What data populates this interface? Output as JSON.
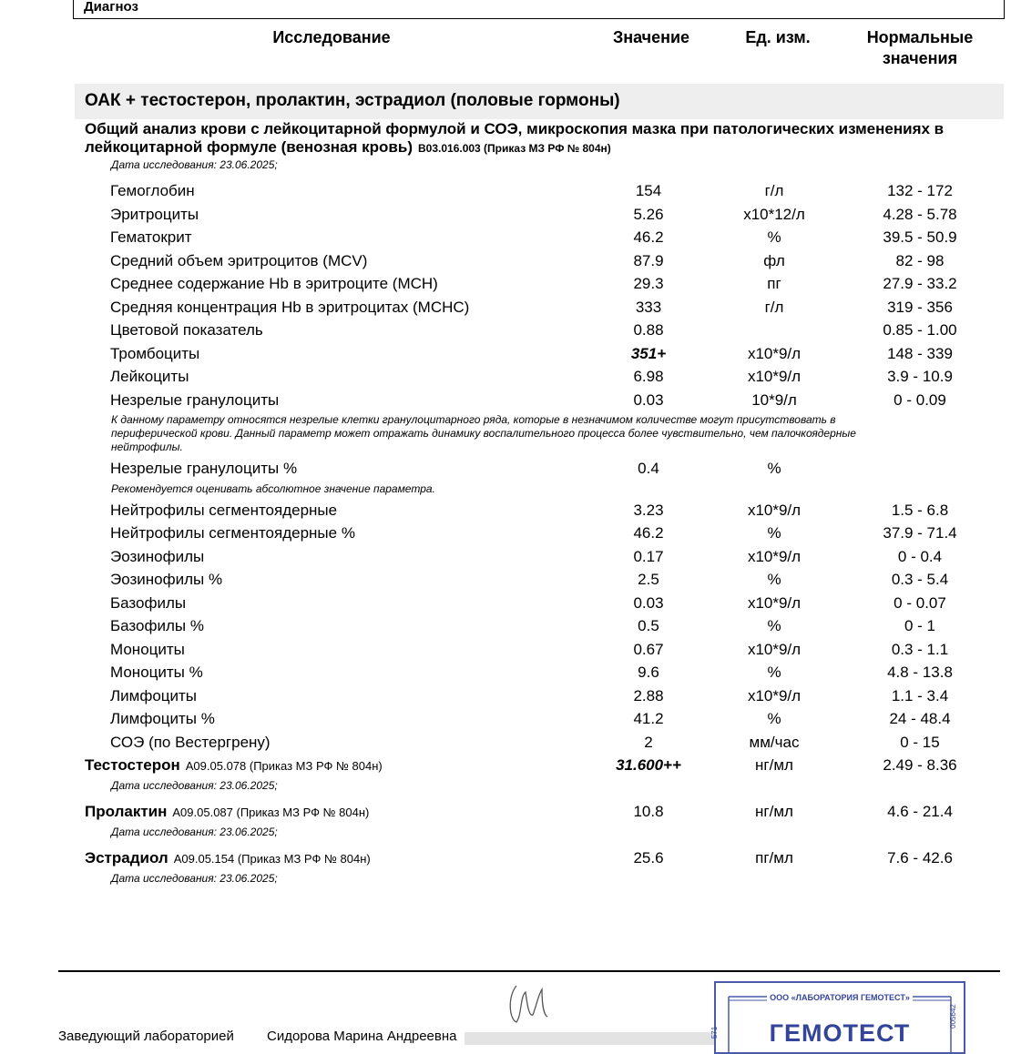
{
  "header": {
    "diagnosis": "Диагноз"
  },
  "columns": [
    "Исследование",
    "Значение",
    "Ед. изм.",
    "Нормальные значения"
  ],
  "panel": "ОАК + тестостерон, пролактин, эстрадиол (половые гормоны)",
  "cbc": {
    "title": "Общий анализ крови с лейкоцитарной формулой и СОЭ, микроскопия мазка при патологических изменениях в лейкоцитарной формуле (венозная кровь)",
    "code": "B03.016.003 (Приказ МЗ РФ № 804н)",
    "date": "Дата исследования: 23.06.2025;",
    "rows": [
      {
        "name": "Гемоглобин",
        "value": "154",
        "unit": "г/л",
        "range": "132 - 172"
      },
      {
        "name": "Эритроциты",
        "value": "5.26",
        "unit": "x10*12/л",
        "range": "4.28 - 5.78"
      },
      {
        "name": "Гематокрит",
        "value": "46.2",
        "unit": "%",
        "range": "39.5 - 50.9"
      },
      {
        "name": "Средний объем эритроцитов (MCV)",
        "value": "87.9",
        "unit": "фл",
        "range": "82 - 98"
      },
      {
        "name": "Среднее содержание Hb в эритроците (MCH)",
        "value": "29.3",
        "unit": "пг",
        "range": "27.9 - 33.2"
      },
      {
        "name": "Средняя концентрация Hb в эритроцитах (MCHC)",
        "value": "333",
        "unit": "г/л",
        "range": "319 - 356"
      },
      {
        "name": "Цветовой показатель",
        "value": "0.88",
        "range": "0.85 - 1.00"
      },
      {
        "name": "Тромбоциты",
        "value": "351+",
        "unit": "x10*9/л",
        "range": "148 - 339"
      },
      {
        "name": "Лейкоциты",
        "value": "6.98",
        "unit": "x10*9/л",
        "range": "3.9 - 10.9"
      },
      {
        "name": "Незрелые гранулоциты",
        "value": "0.03",
        "unit": "10*9/л",
        "range": "0 - 0.09",
        "note": "К данному параметру относятся незрелые клетки гранулоцитарного ряда, которые  в незначимом количестве могут присутствовать в периферической крови. Данный параметр может отражать динамику воспалительного процесса более чувствительно, чем палочкоядерные нейтрофилы."
      },
      {
        "name": "Незрелые гранулоциты %",
        "value": "0.4",
        "unit": "%",
        "note": "Рекомендуется оценивать абсолютное значение параметра."
      },
      {
        "name": "Нейтрофилы сегментоядерные",
        "value": "3.23",
        "unit": "x10*9/л",
        "range": "1.5 - 6.8"
      },
      {
        "name": "Нейтрофилы сегментоядерные %",
        "value": "46.2",
        "unit": "%",
        "range": "37.9 - 71.4"
      },
      {
        "name": "Эозинофилы",
        "value": "0.17",
        "unit": "x10*9/л",
        "range": "0 - 0.4"
      },
      {
        "name": "Эозинофилы %",
        "value": "2.5",
        "unit": "%",
        "range": "0.3 - 5.4"
      },
      {
        "name": "Базофилы",
        "value": "0.03",
        "unit": "x10*9/л",
        "range": "0 - 0.07"
      },
      {
        "name": "Базофилы %",
        "value": "0.5",
        "unit": "%",
        "range": "0 - 1"
      },
      {
        "name": "Моноциты",
        "value": "0.67",
        "unit": "x10*9/л",
        "range": "0.3 - 1.1"
      },
      {
        "name": "Моноциты %",
        "value": "9.6",
        "unit": "%",
        "range": "4.8 - 13.8"
      },
      {
        "name": "Лимфоциты",
        "value": "2.88",
        "unit": "x10*9/л",
        "range": "1.1 - 3.4"
      },
      {
        "name": "Лимфоциты %",
        "value": "41.2",
        "unit": "%",
        "range": "24 - 48.4"
      },
      {
        "name": "СОЭ (по Вестергрену)",
        "value": "2",
        "unit": "мм/час",
        "range": "0 - 15"
      }
    ]
  },
  "tests": [
    {
      "name": "Тестостерон",
      "code": "A09.05.078 (Приказ МЗ РФ № 804н)",
      "value": "31.600++",
      "unit": "нг/мл",
      "range": "2.49 - 8.36",
      "date": "Дата исследования: 23.06.2025;"
    },
    {
      "name": "Пролактин",
      "code": "A09.05.087 (Приказ МЗ РФ № 804н)",
      "value": "10.8",
      "unit": "нг/мл",
      "range": "4.6 - 21.4",
      "date": "Дата исследования: 23.06.2025;"
    },
    {
      "name": "Эстрадиол",
      "code": "A09.05.154 (Приказ МЗ РФ № 804н)",
      "value": "25.6",
      "unit": "пг/мл",
      "range": "7.6 - 42.6",
      "date": "Дата исследования: 23.06.2025;"
    }
  ],
  "footer": {
    "position": "Заведующий лабораторией",
    "person": "Сидорова Марина Андреевна",
    "stamp": {
      "org": "ООО «ЛАБОРАТОРИЯ ГЕМОТЕСТ»",
      "brand": "ГЕМОТЕСТ",
      "left_number": "571",
      "right_number": "005642"
    }
  }
}
